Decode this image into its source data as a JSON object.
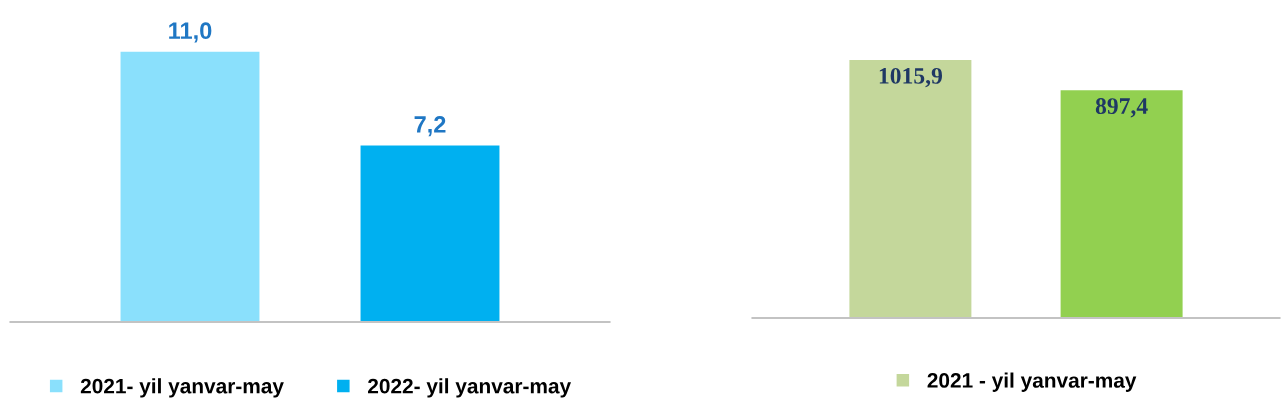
{
  "chart_data": [
    {
      "type": "bar",
      "categories": [
        null
      ],
      "legend": "bottom",
      "series": [
        {
          "name": "2021- yil yanvar-may",
          "color": "#8ae0fc",
          "values": [
            11.0
          ],
          "value_labels": [
            "11,0"
          ]
        },
        {
          "name": "2022- yil yanvar-may",
          "color": "#00b0f0",
          "values": [
            7.2
          ],
          "value_labels": [
            "7,2"
          ]
        }
      ]
    },
    {
      "type": "bar",
      "categories": [
        null
      ],
      "legend": "bottom",
      "series": [
        {
          "name": "2021 - yil yanvar-may",
          "color": "#c4d79b",
          "values": [
            1015.9
          ],
          "value_labels": [
            "1015,9"
          ]
        },
        {
          "color": "#92d050",
          "values": [
            897.4
          ],
          "value_labels": [
            "897,4"
          ]
        }
      ]
    }
  ]
}
